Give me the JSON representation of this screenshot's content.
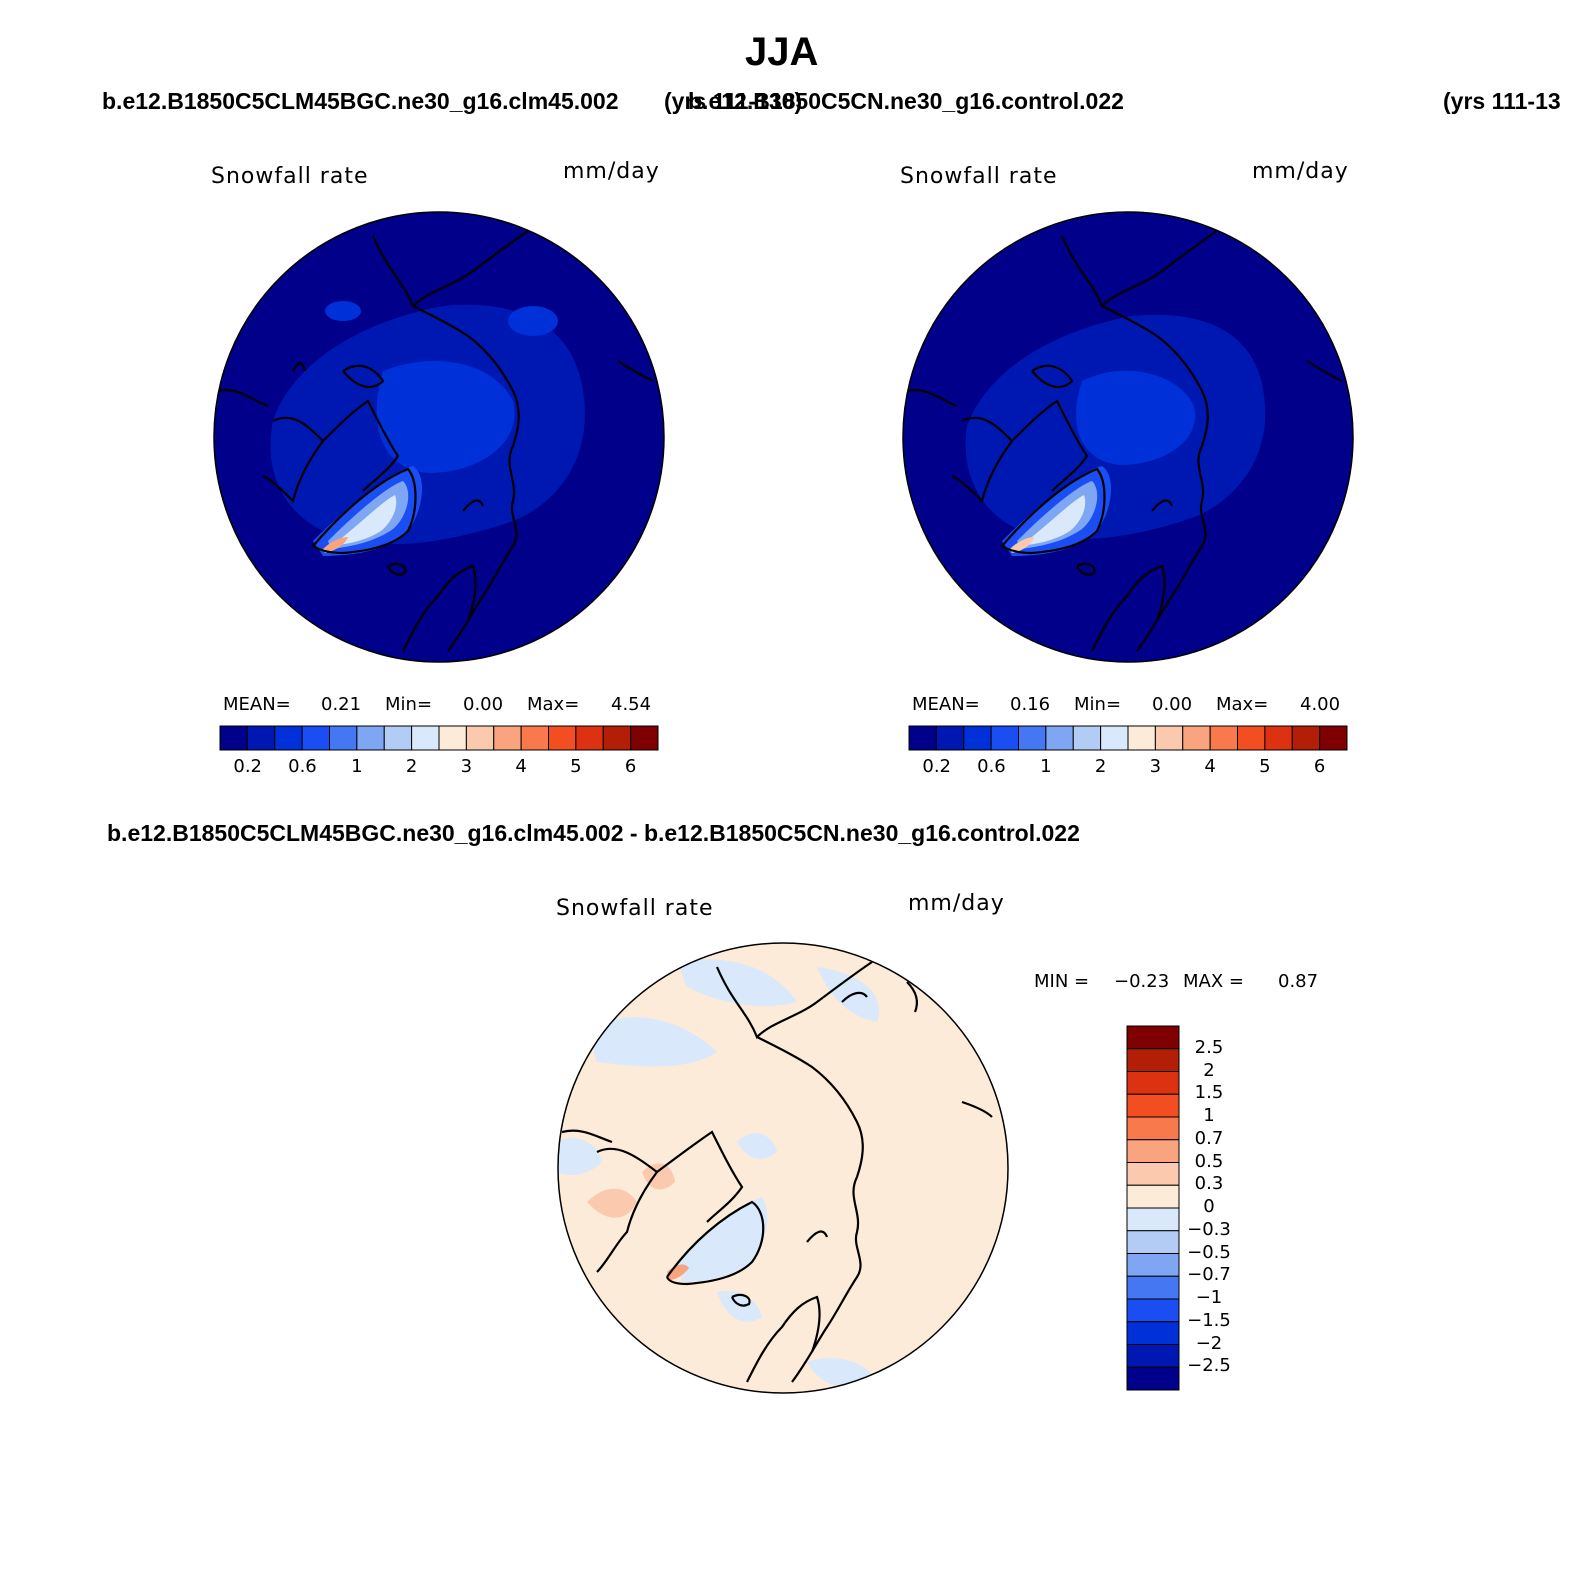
{
  "title": "JJA",
  "case_left": "b.e12.B1850C5CLM45BGC.ne30_g16.clm45.002",
  "years_left": "(yrs 111-130)",
  "case_right": "b.e12.B1850C5CN.ne30_g16.control.022",
  "years_right": "(yrs 111-13",
  "diff_title": "b.e12.B1850C5CLM45BGC.ne30_g16.clm45.002 - b.e12.B1850C5CN.ne30_g16.control.022",
  "panels": [
    {
      "variable": "Snowfall rate",
      "units": "mm/day",
      "mean_label": "MEAN=",
      "mean": "0.21",
      "min_label": "Min=",
      "min": "0.00",
      "max_label": "Max=",
      "max": "4.54"
    },
    {
      "variable": "Snowfall rate",
      "units": "mm/day",
      "mean_label": "MEAN=",
      "mean": "0.16",
      "min_label": "Min=",
      "min": "0.00",
      "max_label": "Max=",
      "max": "4.00"
    }
  ],
  "diff_panel": {
    "variable": "Snowfall rate",
    "units": "mm/day",
    "min_label": "MIN =",
    "min": "−0.23",
    "max_label": "MAX =",
    "max": "0.87"
  },
  "colorbar_top": {
    "colors": [
      "#00008a",
      "#0018b2",
      "#0030d8",
      "#1a4df2",
      "#4577f2",
      "#7ea6f2",
      "#b2ccf5",
      "#d9e8fa",
      "#fdebd9",
      "#fbc9ad",
      "#f9a47e",
      "#f8794b",
      "#f34e22",
      "#dd3211",
      "#b21e06",
      "#7f0000"
    ],
    "tick_labels": [
      "0.2",
      "0.6",
      "1",
      "2",
      "3",
      "4",
      "5",
      "6"
    ]
  },
  "colorbar_diff": {
    "colors": [
      "#7f0000",
      "#b21e06",
      "#dd3211",
      "#f34e22",
      "#f8794b",
      "#f9a47e",
      "#fbc9ad",
      "#fdebd9",
      "#d9e8fa",
      "#b2ccf5",
      "#7ea6f2",
      "#4577f2",
      "#1a4df2",
      "#0030d8",
      "#0018b2",
      "#00008a"
    ],
    "tick_labels": [
      "2.5",
      "2",
      "1.5",
      "1",
      "0.7",
      "0.5",
      "0.3",
      "0",
      "−0.3",
      "−0.5",
      "−0.7",
      "−1",
      "−1.5",
      "−2",
      "−2.5"
    ]
  }
}
